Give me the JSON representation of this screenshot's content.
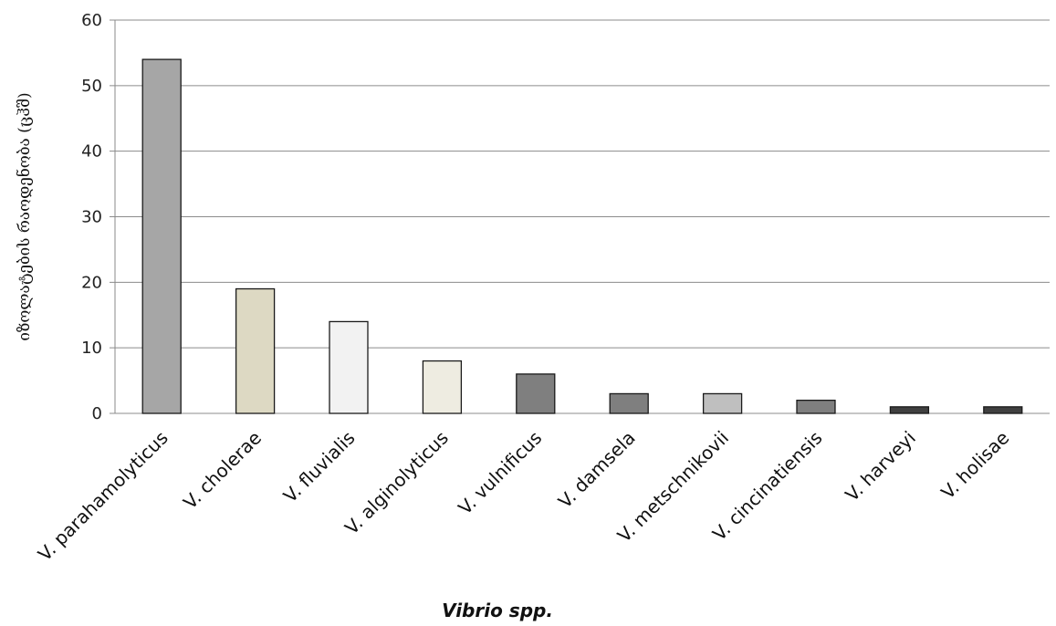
{
  "chart_data": {
    "type": "bar",
    "title": "",
    "xlabel": "Vibrio spp.",
    "ylabel": "იზოლატების რაოდენობა (ცჰშ)",
    "ylim": [
      0,
      60
    ],
    "yticks": [
      0,
      10,
      20,
      30,
      40,
      50,
      60
    ],
    "grid": true,
    "legend": "none",
    "categories": [
      "V. parahamolyticus",
      "V. cholerae",
      "V. fluvialis",
      "V. alginolyticus",
      "V. vulnificus",
      "V. damsela",
      "V. metschnikovii",
      "V. cincinatiensis",
      "V. harveyi",
      "V. holisae"
    ],
    "values": [
      54,
      19,
      14,
      8,
      6,
      3,
      3,
      2,
      1,
      1
    ],
    "colors": [
      "#a6a6a6",
      "#ddd9c3",
      "#f2f2f2",
      "#eeece1",
      "#7f7f7f",
      "#7f7f7f",
      "#bfbfbf",
      "#7f7f7f",
      "#404040",
      "#404040"
    ]
  }
}
